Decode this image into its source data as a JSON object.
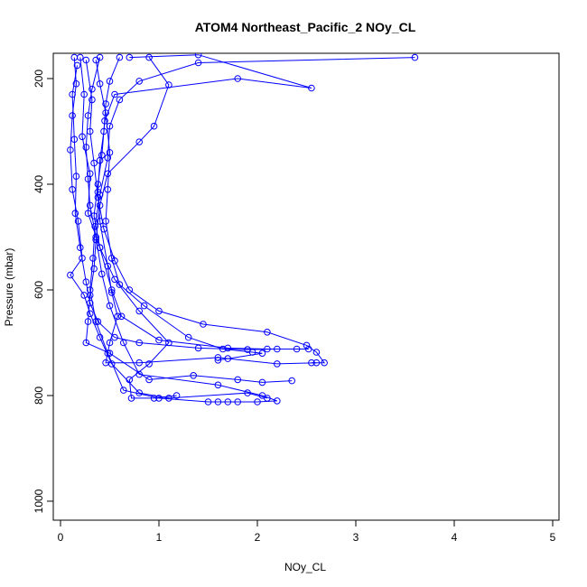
{
  "chart_data": {
    "type": "line",
    "title": "ATOM4 Northeast_Pacific_2 NOy_CL",
    "xlabel": "NOy_CL",
    "ylabel": "Pressure (mbar)",
    "xlim": [
      0,
      5
    ],
    "ylim": [
      1030,
      160
    ],
    "y_reversed": true,
    "xticks": [
      0,
      1,
      2,
      3,
      4,
      5
    ],
    "yticks": [
      200,
      400,
      600,
      800,
      1000
    ],
    "grid": false,
    "color": "#0000ff",
    "marker": "open-circle",
    "series": [
      {
        "values": [
          [
            0.2,
            160
          ],
          [
            0.24,
            230
          ],
          [
            0.22,
            310
          ],
          [
            0.3,
            380
          ],
          [
            0.28,
            455
          ],
          [
            0.4,
            520
          ],
          [
            0.52,
            600
          ],
          [
            0.62,
            650
          ],
          [
            1.0,
            695
          ],
          [
            1.7,
            710
          ],
          [
            2.1,
            712
          ],
          [
            2.4,
            712
          ],
          [
            2.52,
            712
          ]
        ]
      },
      {
        "values": [
          [
            0.17,
            175
          ],
          [
            0.12,
            230
          ],
          [
            0.14,
            315
          ],
          [
            0.16,
            385
          ],
          [
            0.15,
            455
          ],
          [
            0.2,
            520
          ],
          [
            0.26,
            585
          ],
          [
            0.3,
            625
          ],
          [
            0.38,
            660
          ],
          [
            0.55,
            690
          ],
          [
            0.8,
            700
          ],
          [
            1.4,
            710
          ],
          [
            1.9,
            713
          ],
          [
            2.2,
            712
          ]
        ]
      },
      {
        "values": [
          [
            0.26,
            165
          ],
          [
            0.32,
            240
          ],
          [
            0.3,
            300
          ],
          [
            0.34,
            360
          ],
          [
            0.38,
            425
          ],
          [
            0.44,
            485
          ],
          [
            0.55,
            545
          ],
          [
            0.7,
            600
          ],
          [
            1.0,
            640
          ],
          [
            1.45,
            665
          ],
          [
            2.1,
            680
          ],
          [
            2.5,
            705
          ],
          [
            2.6,
            718
          ],
          [
            2.68,
            738
          ],
          [
            2.55,
            738
          ]
        ]
      },
      {
        "values": [
          [
            0.36,
            165
          ],
          [
            0.4,
            210
          ],
          [
            0.46,
            265
          ],
          [
            0.5,
            340
          ],
          [
            0.48,
            410
          ],
          [
            0.46,
            470
          ],
          [
            0.52,
            540
          ],
          [
            0.6,
            590
          ],
          [
            0.85,
            630
          ],
          [
            1.3,
            690
          ],
          [
            1.65,
            712
          ],
          [
            1.95,
            718
          ],
          [
            2.05,
            720
          ],
          [
            1.7,
            730
          ],
          [
            1.6,
            733
          ]
        ]
      },
      {
        "values": [
          [
            0.6,
            160
          ],
          [
            0.5,
            205
          ],
          [
            0.46,
            248
          ],
          [
            0.44,
            300
          ],
          [
            0.4,
            355
          ],
          [
            0.38,
            415
          ],
          [
            0.4,
            470
          ],
          [
            0.48,
            555
          ],
          [
            0.52,
            605
          ],
          [
            0.58,
            650
          ],
          [
            0.5,
            700
          ],
          [
            0.46,
            738
          ],
          [
            0.8,
            738
          ],
          [
            1.6,
            728
          ],
          [
            2.2,
            740
          ],
          [
            2.6,
            738
          ]
        ]
      },
      {
        "values": [
          [
            0.9,
            160
          ],
          [
            1.1,
            212
          ],
          [
            0.95,
            290
          ],
          [
            0.8,
            320
          ],
          [
            0.48,
            380
          ],
          [
            0.4,
            440
          ],
          [
            0.36,
            505
          ],
          [
            0.34,
            560
          ],
          [
            0.3,
            610
          ],
          [
            0.28,
            660
          ],
          [
            0.26,
            700
          ],
          [
            0.5,
            720
          ],
          [
            0.9,
            770
          ],
          [
            1.35,
            762
          ],
          [
            1.8,
            770
          ],
          [
            2.05,
            775
          ],
          [
            2.35,
            772
          ]
        ]
      },
      {
        "values": [
          [
            3.6,
            160
          ],
          [
            1.4,
            170
          ],
          [
            0.8,
            205
          ],
          [
            0.6,
            240
          ],
          [
            0.5,
            290
          ],
          [
            0.48,
            350
          ],
          [
            0.4,
            420
          ],
          [
            0.35,
            480
          ],
          [
            0.33,
            540
          ],
          [
            0.3,
            600
          ],
          [
            0.36,
            660
          ],
          [
            0.48,
            720
          ],
          [
            0.64,
            790
          ],
          [
            1.0,
            805
          ],
          [
            1.5,
            812
          ],
          [
            1.8,
            812
          ]
        ]
      },
      {
        "values": [
          [
            0.7,
            160
          ],
          [
            1.4,
            155
          ],
          [
            2.55,
            218
          ],
          [
            1.8,
            200
          ],
          [
            0.55,
            230
          ],
          [
            0.45,
            280
          ],
          [
            0.42,
            345
          ],
          [
            0.38,
            400
          ],
          [
            0.34,
            460
          ],
          [
            0.4,
            520
          ],
          [
            0.55,
            580
          ],
          [
            0.8,
            640
          ],
          [
            1.1,
            700
          ],
          [
            0.9,
            740
          ],
          [
            0.7,
            770
          ],
          [
            0.72,
            805
          ],
          [
            0.95,
            805
          ],
          [
            1.18,
            800
          ]
        ]
      },
      {
        "values": [
          [
            0.4,
            160
          ],
          [
            0.32,
            220
          ],
          [
            0.28,
            270
          ],
          [
            0.26,
            330
          ],
          [
            0.28,
            390
          ],
          [
            0.3,
            440
          ],
          [
            0.36,
            500
          ],
          [
            0.42,
            570
          ],
          [
            0.5,
            630
          ],
          [
            0.64,
            700
          ],
          [
            0.8,
            760
          ],
          [
            1.6,
            780
          ],
          [
            2.05,
            800
          ],
          [
            2.2,
            810
          ],
          [
            2.0,
            812
          ],
          [
            1.7,
            812
          ],
          [
            1.6,
            812
          ]
        ]
      },
      {
        "values": [
          [
            0.14,
            160
          ],
          [
            0.16,
            210
          ],
          [
            0.12,
            270
          ],
          [
            0.1,
            335
          ],
          [
            0.12,
            410
          ],
          [
            0.18,
            470
          ],
          [
            0.22,
            540
          ],
          [
            0.1,
            572
          ],
          [
            0.24,
            610
          ],
          [
            0.3,
            645
          ],
          [
            0.4,
            690
          ],
          [
            0.52,
            740
          ],
          [
            0.8,
            795
          ],
          [
            1.1,
            805
          ],
          [
            1.9,
            795
          ],
          [
            2.1,
            805
          ]
        ]
      }
    ]
  }
}
